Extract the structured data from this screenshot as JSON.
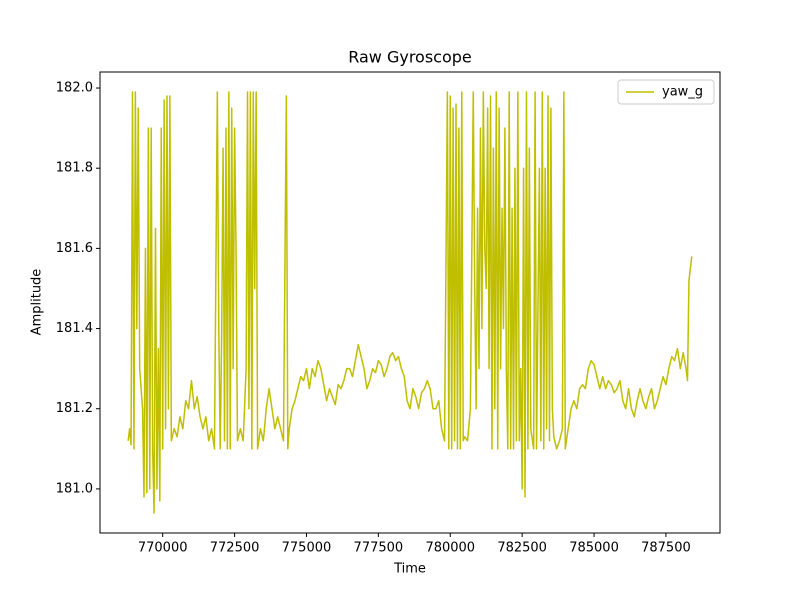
{
  "chart_data": {
    "type": "line",
    "title": "Raw Gyroscope",
    "x_label": "Time",
    "y_label": "Amplitude",
    "x": [
      768800,
      768850,
      768900,
      768950,
      769000,
      769050,
      769100,
      769150,
      769200,
      769300,
      769350,
      769400,
      769450,
      769500,
      769550,
      769600,
      769650,
      769700,
      769750,
      769800,
      769850,
      769900,
      769950,
      770000,
      770050,
      770100,
      770150,
      770200,
      770250,
      770300,
      770400,
      770500,
      770600,
      770700,
      770800,
      770900,
      771000,
      771100,
      771200,
      771300,
      771400,
      771500,
      771600,
      771700,
      771800,
      771900,
      771950,
      772000,
      772050,
      772100,
      772150,
      772200,
      772250,
      772300,
      772350,
      772400,
      772450,
      772500,
      772550,
      772600,
      772700,
      772800,
      772900,
      772950,
      773000,
      773050,
      773100,
      773150,
      773200,
      773250,
      773300,
      773400,
      773500,
      773600,
      773700,
      773800,
      773900,
      774000,
      774100,
      774200,
      774300,
      774350,
      774400,
      774500,
      774600,
      774700,
      774800,
      774900,
      775000,
      775100,
      775200,
      775300,
      775400,
      775500,
      775600,
      775700,
      775800,
      775900,
      776000,
      776100,
      776200,
      776300,
      776400,
      776500,
      776600,
      776700,
      776800,
      776900,
      777000,
      777100,
      777200,
      777300,
      777400,
      777500,
      777600,
      777700,
      777800,
      777900,
      778000,
      778100,
      778200,
      778300,
      778400,
      778500,
      778600,
      778700,
      778800,
      778900,
      779000,
      779100,
      779200,
      779300,
      779400,
      779500,
      779600,
      779700,
      779800,
      779900,
      779950,
      780000,
      780050,
      780100,
      780150,
      780200,
      780250,
      780300,
      780350,
      780400,
      780450,
      780500,
      780600,
      780700,
      780800,
      780850,
      780900,
      780950,
      781000,
      781050,
      781100,
      781150,
      781200,
      781250,
      781300,
      781350,
      781400,
      781450,
      781500,
      781550,
      781600,
      781650,
      781700,
      781750,
      781800,
      781850,
      781900,
      781950,
      782000,
      782050,
      782100,
      782150,
      782200,
      782250,
      782300,
      782350,
      782400,
      782450,
      782500,
      782550,
      782600,
      782650,
      782700,
      782750,
      782800,
      782900,
      782950,
      783000,
      783100,
      783150,
      783200,
      783250,
      783300,
      783350,
      783400,
      783450,
      783500,
      783550,
      783600,
      783700,
      783800,
      783900,
      783950,
      784000,
      784100,
      784200,
      784300,
      784400,
      784500,
      784600,
      784700,
      784800,
      784900,
      785000,
      785100,
      785200,
      785300,
      785400,
      785500,
      785600,
      785700,
      785800,
      785900,
      786000,
      786100,
      786200,
      786300,
      786400,
      786500,
      786600,
      786700,
      786800,
      786900,
      787000,
      787100,
      787200,
      787300,
      787400,
      787500,
      787600,
      787700,
      787800,
      787900,
      788000,
      788100,
      788200,
      788250,
      788300,
      788350,
      788400
    ],
    "series": [
      {
        "name": "yaw_g",
        "color": "#bfbf00",
        "values": [
          181.12,
          181.15,
          181.11,
          181.99,
          181.1,
          181.99,
          181.4,
          181.95,
          181.3,
          181.2,
          180.98,
          181.6,
          180.99,
          181.9,
          181.0,
          181.9,
          181.1,
          180.94,
          181.65,
          181.0,
          181.35,
          180.97,
          181.9,
          181.1,
          181.97,
          181.15,
          181.98,
          181.2,
          181.98,
          181.12,
          181.15,
          181.13,
          181.18,
          181.15,
          181.22,
          181.2,
          181.27,
          181.2,
          181.23,
          181.18,
          181.15,
          181.18,
          181.12,
          181.15,
          181.1,
          181.99,
          181.4,
          181.1,
          181.38,
          181.85,
          181.12,
          181.9,
          181.1,
          181.99,
          181.1,
          181.95,
          181.3,
          181.9,
          181.6,
          181.12,
          181.15,
          181.12,
          181.3,
          181.99,
          181.2,
          181.99,
          181.1,
          181.99,
          181.5,
          181.99,
          181.1,
          181.15,
          181.12,
          181.2,
          181.25,
          181.2,
          181.15,
          181.18,
          181.15,
          181.12,
          181.98,
          181.1,
          181.15,
          181.2,
          181.22,
          181.25,
          181.28,
          181.27,
          181.3,
          181.25,
          181.3,
          181.28,
          181.32,
          181.3,
          181.26,
          181.22,
          181.25,
          181.23,
          181.21,
          181.26,
          181.25,
          181.27,
          181.3,
          181.3,
          181.28,
          181.32,
          181.36,
          181.33,
          181.3,
          181.25,
          181.27,
          181.3,
          181.29,
          181.32,
          181.31,
          181.28,
          181.3,
          181.33,
          181.34,
          181.32,
          181.33,
          181.3,
          181.28,
          181.22,
          181.2,
          181.25,
          181.23,
          181.2,
          181.24,
          181.25,
          181.27,
          181.25,
          181.2,
          181.2,
          181.22,
          181.15,
          181.12,
          181.99,
          181.1,
          181.98,
          181.1,
          181.95,
          181.12,
          181.96,
          181.1,
          181.9,
          181.1,
          181.99,
          181.12,
          181.13,
          181.12,
          181.2,
          181.99,
          181.5,
          181.2,
          181.7,
          181.3,
          181.9,
          181.4,
          181.99,
          181.6,
          181.5,
          181.95,
          181.3,
          181.98,
          181.1,
          181.85,
          181.2,
          181.99,
          181.1,
          181.95,
          181.3,
          181.7,
          181.4,
          181.9,
          181.3,
          181.1,
          181.99,
          181.1,
          181.7,
          181.1,
          181.8,
          181.12,
          181.99,
          181.12,
          181.3,
          181.0,
          181.8,
          180.98,
          181.99,
          181.1,
          181.85,
          181.15,
          181.1,
          181.99,
          181.1,
          181.8,
          181.12,
          181.99,
          181.1,
          181.8,
          181.15,
          181.98,
          181.12,
          181.95,
          181.2,
          181.13,
          181.1,
          181.12,
          181.15,
          181.99,
          181.1,
          181.15,
          181.2,
          181.22,
          181.2,
          181.25,
          181.26,
          181.25,
          181.3,
          181.32,
          181.31,
          181.28,
          181.25,
          181.28,
          181.25,
          181.27,
          181.26,
          181.24,
          181.25,
          181.27,
          181.22,
          181.2,
          181.25,
          181.2,
          181.18,
          181.22,
          181.25,
          181.22,
          181.2,
          181.23,
          181.25,
          181.2,
          181.22,
          181.25,
          181.28,
          181.26,
          181.3,
          181.33,
          181.32,
          181.35,
          181.3,
          181.34,
          181.3,
          181.27,
          181.52,
          181.55,
          181.58
        ]
      }
    ],
    "xlim": [
      767820,
      789380
    ],
    "ylim": [
      180.89,
      182.04
    ],
    "xticks": [
      770000,
      772500,
      775000,
      777500,
      780000,
      782500,
      785000,
      787500
    ],
    "yticks": [
      {
        "value": 181,
        "label": "181.0"
      },
      181.2,
      181.4,
      181.6,
      181.8,
      {
        "value": 182,
        "label": "182.0"
      }
    ],
    "legend": "upper right"
  }
}
